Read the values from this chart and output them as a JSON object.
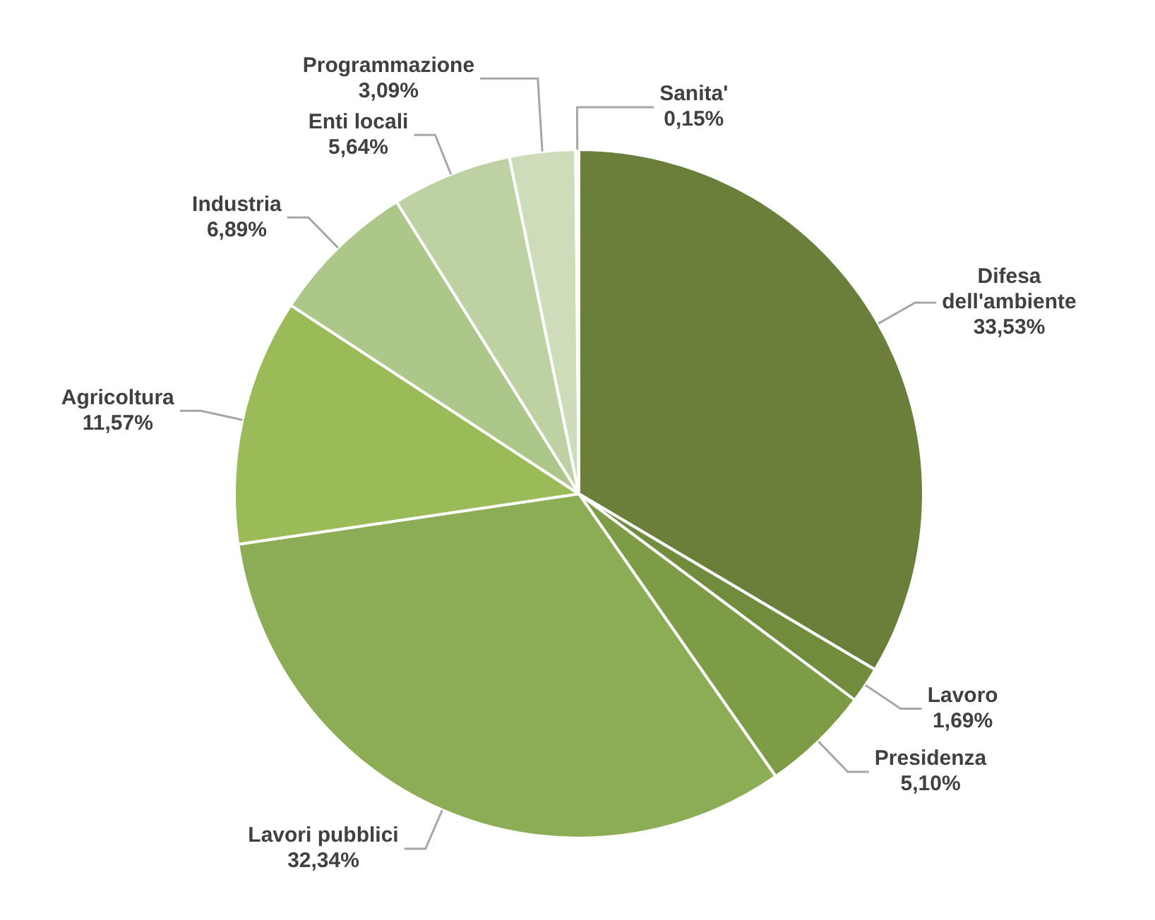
{
  "chart_data": {
    "type": "pie",
    "categories": [
      "Difesa dell'ambiente",
      "Lavoro",
      "Presidenza",
      "Lavori pubblici",
      "Agricoltura",
      "Industria",
      "Enti locali",
      "Programmazione",
      "Sanita'"
    ],
    "values": [
      33.53,
      1.69,
      5.1,
      32.34,
      11.57,
      6.89,
      5.64,
      3.09,
      0.15
    ],
    "value_labels": [
      "33,53%",
      "1,69%",
      "5,10%",
      "32,34%",
      "11,57%",
      "6,89%",
      "5,64%",
      "3,09%",
      "0,15%"
    ],
    "colors": [
      "#6a7f3a",
      "#718c3c",
      "#7e9c45",
      "#8cad55",
      "#9bbb59",
      "#adc78a",
      "#bdd1a2",
      "#cddcb9",
      "#dfe8d2"
    ],
    "legend": false
  }
}
